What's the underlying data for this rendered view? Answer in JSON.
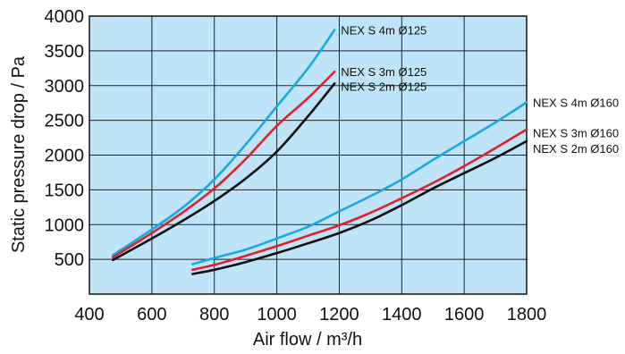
{
  "chart_data": {
    "type": "line",
    "xlabel": "Air flow / m³/h",
    "ylabel": "Static pressure drop / Pa",
    "xlim": [
      400,
      1800
    ],
    "ylim": [
      0,
      4000
    ],
    "xticks": [
      "400",
      "600",
      "800",
      "1000",
      "1200",
      "1400",
      "1600",
      "1800"
    ],
    "yticks": [
      "500",
      "1000",
      "1500",
      "2000",
      "2500",
      "3000",
      "3500",
      "4000"
    ],
    "grid": true,
    "legend": "inline labels at line ends",
    "colors": {
      "plot_background": "#bfe4f7",
      "grid": "#222222",
      "cyan": "#1aa8e0",
      "red": "#e0202a",
      "black": "#111111"
    },
    "series": [
      {
        "name": "NEX S 4m Ø125",
        "color": "#1aa8e0",
        "x": [
          475,
          600,
          700,
          800,
          900,
          1000,
          1100,
          1185
        ],
        "y": [
          560,
          930,
          1250,
          1650,
          2150,
          2700,
          3250,
          3800
        ]
      },
      {
        "name": "NEX S 3m Ø125",
        "color": "#e0202a",
        "x": [
          475,
          600,
          700,
          800,
          900,
          1000,
          1100,
          1185
        ],
        "y": [
          530,
          880,
          1180,
          1520,
          1940,
          2420,
          2820,
          3200
        ]
      },
      {
        "name": "NEX S 2m Ø125",
        "color": "#111111",
        "x": [
          475,
          600,
          700,
          800,
          900,
          1000,
          1100,
          1185
        ],
        "y": [
          490,
          800,
          1060,
          1340,
          1660,
          2050,
          2560,
          3030
        ]
      },
      {
        "name": "NEX S 4m Ø160",
        "color": "#1aa8e0",
        "x": [
          730,
          800,
          900,
          1000,
          1100,
          1200,
          1300,
          1400,
          1500,
          1600,
          1700,
          1800
        ],
        "y": [
          430,
          520,
          640,
          800,
          970,
          1190,
          1410,
          1650,
          1930,
          2200,
          2470,
          2760
        ]
      },
      {
        "name": "NEX S 3m Ø160",
        "color": "#e0202a",
        "x": [
          730,
          800,
          900,
          1000,
          1100,
          1200,
          1300,
          1400,
          1500,
          1600,
          1700,
          1800
        ],
        "y": [
          350,
          420,
          550,
          690,
          840,
          990,
          1170,
          1380,
          1600,
          1840,
          2100,
          2370
        ]
      },
      {
        "name": "NEX S 2m Ø160",
        "color": "#111111",
        "x": [
          730,
          800,
          900,
          1000,
          1100,
          1200,
          1300,
          1400,
          1500,
          1600,
          1700,
          1800
        ],
        "y": [
          290,
          350,
          460,
          590,
          730,
          880,
          1060,
          1280,
          1520,
          1740,
          1960,
          2200
        ]
      }
    ]
  }
}
